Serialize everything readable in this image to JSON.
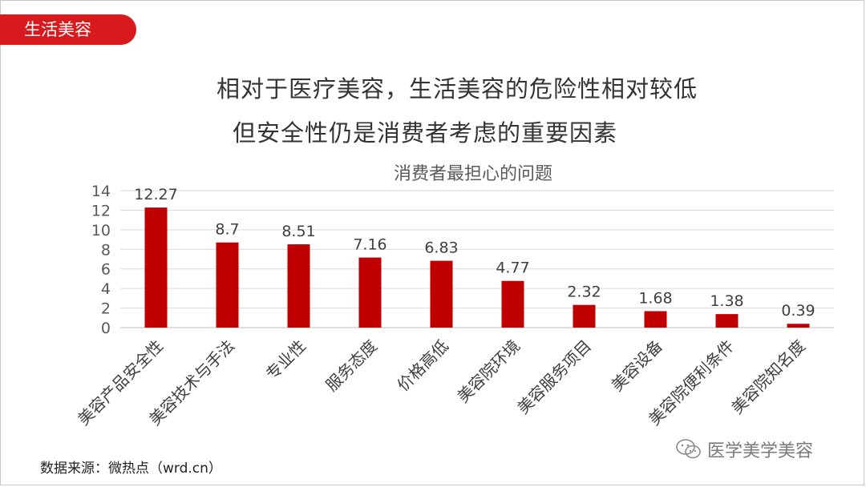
{
  "tag": {
    "label": "生活美容"
  },
  "headline": {
    "line1": "相对于医疗美容，生活美容的危险性相对较低",
    "line2": "但安全性仍是消费者考虑的重要因素"
  },
  "source": "数据来源：微热点（wrd.cn）",
  "watermark": {
    "text": "医学美学美容",
    "icon": "wechat-icon"
  },
  "colors": {
    "accent": "#d81a1f",
    "bar": "#c00000"
  },
  "chart_data": {
    "type": "bar",
    "title": "消费者最担心的问题",
    "categories": [
      "美容产品安全性",
      "美容技术与手法",
      "专业性",
      "服务态度",
      "价格高低",
      "美容院环境",
      "美容服务项目",
      "美容设备",
      "美容院便利条件",
      "美容院知名度"
    ],
    "values": [
      12.27,
      8.7,
      8.51,
      7.16,
      6.83,
      4.77,
      2.32,
      1.68,
      1.38,
      0.39
    ],
    "value_labels": [
      "12.27",
      "8.7",
      "8.51",
      "7.16",
      "6.83",
      "4.77",
      "2.32",
      "1.68",
      "1.38",
      "0.39"
    ],
    "ylim": [
      0,
      14
    ],
    "yticks": [
      0,
      2,
      4,
      6,
      8,
      10,
      12,
      14
    ],
    "grid": true,
    "xlabel": "",
    "ylabel": ""
  }
}
